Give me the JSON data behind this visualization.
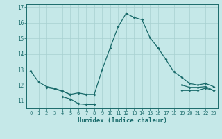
{
  "title": "",
  "xlabel": "Humidex (Indice chaleur)",
  "background_color": "#c5e8e8",
  "grid_color": "#a8d0d0",
  "line_color": "#1a6b6b",
  "lines": [
    [
      12.9,
      12.2,
      11.9,
      11.8,
      11.6,
      11.4,
      11.5,
      11.4,
      11.4,
      13.0,
      14.4,
      15.75,
      16.6,
      16.35,
      16.2,
      15.05,
      14.4,
      13.65,
      12.85,
      12.5,
      12.1,
      12.0,
      12.1,
      11.9
    ],
    [
      null,
      null,
      11.85,
      11.75,
      11.6,
      11.4,
      null,
      null,
      null,
      null,
      null,
      null,
      null,
      null,
      null,
      null,
      null,
      null,
      null,
      12.0,
      11.85,
      11.85,
      11.9,
      11.65
    ],
    [
      null,
      null,
      null,
      null,
      11.25,
      11.1,
      10.8,
      10.75,
      10.75,
      null,
      null,
      null,
      null,
      null,
      null,
      null,
      null,
      null,
      null,
      11.65,
      11.65,
      11.65,
      11.8,
      11.65
    ],
    [
      null,
      null,
      null,
      null,
      null,
      null,
      null,
      null,
      null,
      null,
      null,
      null,
      null,
      null,
      null,
      null,
      null,
      null,
      null,
      null,
      null,
      null,
      null,
      null
    ]
  ],
  "ylim": [
    10.5,
    17.2
  ],
  "yticks": [
    11,
    12,
    13,
    14,
    15,
    16,
    17
  ],
  "xticks": [
    0,
    1,
    2,
    3,
    4,
    5,
    6,
    7,
    8,
    9,
    10,
    11,
    12,
    13,
    14,
    15,
    16,
    17,
    18,
    19,
    20,
    21,
    22,
    23
  ],
  "figsize": [
    3.2,
    2.0
  ],
  "dpi": 100
}
